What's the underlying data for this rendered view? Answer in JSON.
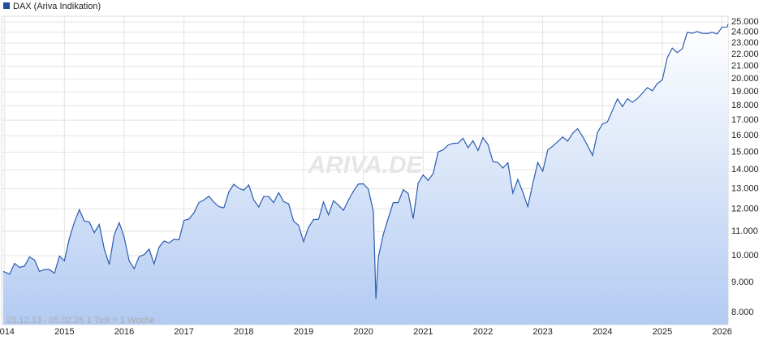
{
  "chart_data": {
    "type": "line",
    "legend": "DAX (Ariva Indikation)",
    "watermark": "ARIVA.DE",
    "annotation": "23.12.13 - 05.02.26   1 Tick = 1 Woche",
    "ylog": true,
    "grid": true,
    "series": [
      {
        "name": "DAX",
        "color": "#2a5db0",
        "x": [
          2013.975,
          2014.083,
          2014.167,
          2014.25,
          2014.333,
          2014.417,
          2014.5,
          2014.583,
          2014.667,
          2014.75,
          2014.833,
          2014.917,
          2015.0,
          2015.083,
          2015.167,
          2015.25,
          2015.333,
          2015.417,
          2015.5,
          2015.583,
          2015.667,
          2015.75,
          2015.833,
          2015.917,
          2016.0,
          2016.083,
          2016.167,
          2016.25,
          2016.333,
          2016.417,
          2016.5,
          2016.583,
          2016.667,
          2016.75,
          2016.833,
          2016.917,
          2017.0,
          2017.083,
          2017.167,
          2017.25,
          2017.333,
          2017.417,
          2017.5,
          2017.583,
          2017.667,
          2017.75,
          2017.833,
          2017.917,
          2018.0,
          2018.083,
          2018.167,
          2018.25,
          2018.333,
          2018.417,
          2018.5,
          2018.583,
          2018.667,
          2018.75,
          2018.833,
          2018.917,
          2019.0,
          2019.083,
          2019.167,
          2019.25,
          2019.333,
          2019.417,
          2019.5,
          2019.583,
          2019.667,
          2019.75,
          2019.833,
          2019.917,
          2020.0,
          2020.083,
          2020.167,
          2020.21,
          2020.25,
          2020.333,
          2020.417,
          2020.5,
          2020.583,
          2020.667,
          2020.75,
          2020.833,
          2020.917,
          2021.0,
          2021.083,
          2021.167,
          2021.25,
          2021.333,
          2021.417,
          2021.5,
          2021.583,
          2021.667,
          2021.75,
          2021.833,
          2021.917,
          2022.0,
          2022.083,
          2022.167,
          2022.25,
          2022.333,
          2022.417,
          2022.5,
          2022.583,
          2022.667,
          2022.75,
          2022.833,
          2022.917,
          2023.0,
          2023.083,
          2023.167,
          2023.25,
          2023.333,
          2023.417,
          2023.5,
          2023.583,
          2023.667,
          2023.75,
          2023.833,
          2023.917,
          2024.0,
          2024.083,
          2024.167,
          2024.25,
          2024.333,
          2024.417,
          2024.5,
          2024.583,
          2024.667,
          2024.75,
          2024.833,
          2024.917,
          2025.0,
          2025.083,
          2025.167,
          2025.25,
          2025.333,
          2025.417,
          2025.5,
          2025.583,
          2025.667,
          2025.75,
          2025.833,
          2025.917,
          2026.0,
          2026.083,
          2026.1
        ],
        "values": [
          9400,
          9300,
          9700,
          9550,
          9600,
          9950,
          9830,
          9400,
          9470,
          9470,
          9330,
          9980,
          9800,
          10700,
          11400,
          11970,
          11450,
          11410,
          10940,
          11300,
          10260,
          9660,
          10850,
          11380,
          10740,
          9800,
          9500,
          9960,
          10040,
          10260,
          9680,
          10340,
          10590,
          10510,
          10660,
          10640,
          11480,
          11540,
          11830,
          12310,
          12440,
          12620,
          12330,
          12120,
          12060,
          12830,
          13230,
          13020,
          12920,
          13190,
          12440,
          12100,
          12610,
          12600,
          12310,
          12800,
          12360,
          12250,
          11450,
          11260,
          10560,
          11170,
          11520,
          11530,
          12340,
          11730,
          12400,
          12190,
          11940,
          12430,
          12870,
          13240,
          13250,
          12980,
          11890,
          8440,
          9940,
          10860,
          11590,
          12310,
          12310,
          12950,
          12760,
          11560,
          13290,
          13720,
          13430,
          13790,
          15010,
          15140,
          15420,
          15530,
          15540,
          15840,
          15260,
          15690,
          15100,
          15880,
          15470,
          14460,
          14410,
          14100,
          14390,
          12780,
          13480,
          12830,
          12110,
          13250,
          14400,
          13920,
          15130,
          15360,
          15630,
          15920,
          15660,
          16150,
          16450,
          15950,
          15390,
          14810,
          16220,
          16750,
          16900,
          17680,
          18490,
          17930,
          18500,
          18240,
          18510,
          18900,
          19320,
          19080,
          19630,
          19910,
          21730,
          22550,
          22160,
          22500,
          23990,
          23910,
          24070,
          23900,
          23880,
          24000,
          23840,
          24490,
          24500,
          24800
        ]
      }
    ],
    "xlim": [
      2013.95,
      2026.1
    ],
    "xticks": [
      2014,
      2015,
      2016,
      2017,
      2018,
      2019,
      2020,
      2021,
      2022,
      2023,
      2024,
      2025,
      2026
    ],
    "ylim": [
      7630,
      25560
    ],
    "yticks": [
      {
        "value": 8000,
        "label": "8.000"
      },
      {
        "value": 9000,
        "label": "9.000"
      },
      {
        "value": 10000,
        "label": "10.000"
      },
      {
        "value": 11000,
        "label": "11.000"
      },
      {
        "value": 12000,
        "label": "12.000"
      },
      {
        "value": 13000,
        "label": "13.000"
      },
      {
        "value": 14000,
        "label": "14.000"
      },
      {
        "value": 15000,
        "label": "15.000"
      },
      {
        "value": 16000,
        "label": "16.000"
      },
      {
        "value": 17000,
        "label": "17.000"
      },
      {
        "value": 18000,
        "label": "18.000"
      },
      {
        "value": 19000,
        "label": "19.000"
      },
      {
        "value": 20000,
        "label": "20.000"
      },
      {
        "value": 21000,
        "label": "21.000"
      },
      {
        "value": 22000,
        "label": "22.000"
      },
      {
        "value": 23000,
        "label": "23.000"
      },
      {
        "value": 24000,
        "label": "24.000"
      },
      {
        "value": 25000,
        "label": "25.000"
      }
    ]
  }
}
